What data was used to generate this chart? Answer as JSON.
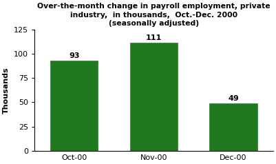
{
  "categories": [
    "Oct-00",
    "Nov-00",
    "Dec-00"
  ],
  "values": [
    93,
    111,
    49
  ],
  "bar_color": "#1f7a1f",
  "title_line1": "Over-the-month change in payroll employment, private",
  "title_line2": "industry,  in thousands,  Oct.-Dec. 2000",
  "title_line3": "(seasonally adjusted)",
  "ylabel": "Thousands",
  "ylim": [
    0,
    125
  ],
  "yticks": [
    0,
    25,
    50,
    75,
    100,
    125
  ],
  "bar_label_fontsize": 8,
  "title_fontsize": 7.8,
  "ylabel_fontsize": 8,
  "xtick_fontsize": 8,
  "ytick_fontsize": 8,
  "background_color": "#ffffff",
  "edge_color": "#1f7a1f"
}
